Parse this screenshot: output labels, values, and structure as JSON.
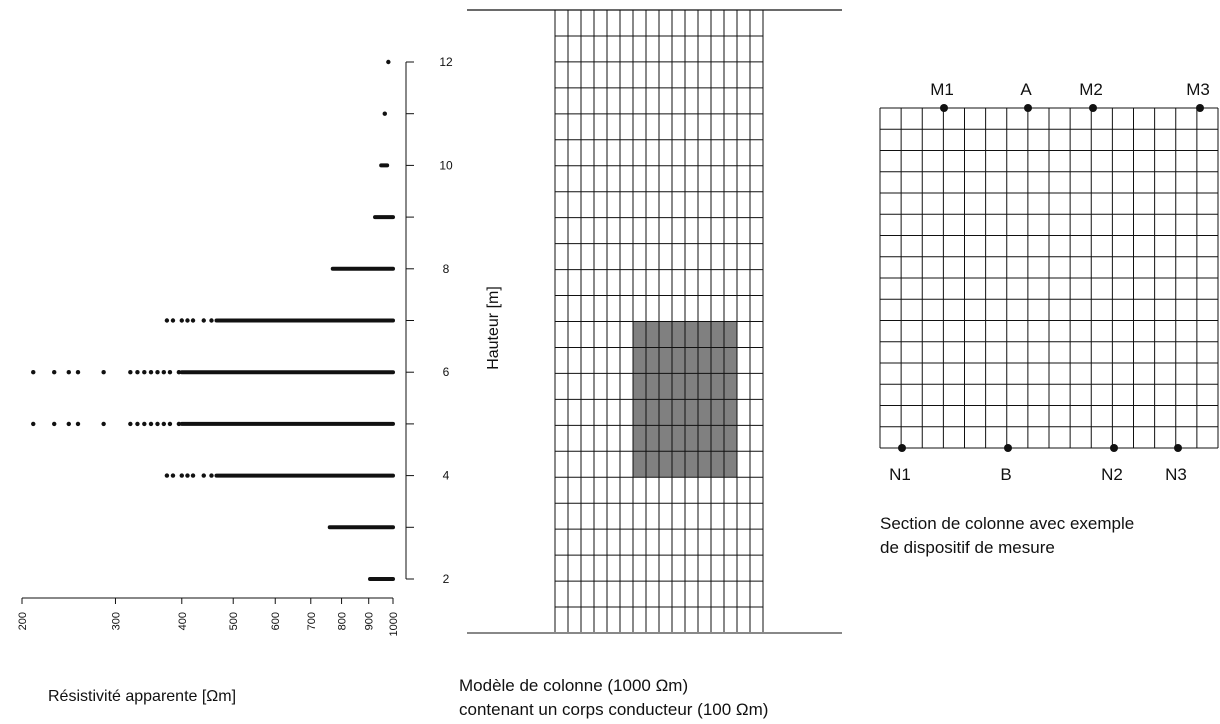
{
  "chart_data": {
    "type": "scatter",
    "xlabel": "Résistivité apparente [Ωm]",
    "ylabel": "Hauteur [m]",
    "x_scale": "log",
    "xlim": [
      200,
      1000
    ],
    "ylim": [
      2,
      12
    ],
    "x_ticks": [
      "200",
      "300",
      "400",
      "500",
      "600",
      "700",
      "800",
      "900",
      "1000"
    ],
    "y_ticks": [
      "2",
      "4",
      "6",
      "8",
      "10",
      "12"
    ],
    "rows": [
      {
        "height": 2,
        "min": 905,
        "max": 1000,
        "points": []
      },
      {
        "height": 3,
        "min": 760,
        "max": 1000,
        "points": []
      },
      {
        "height": 4,
        "min": 465,
        "max": 1000,
        "points": [
          375,
          385,
          400,
          410,
          420,
          440,
          455
        ]
      },
      {
        "height": 5,
        "min": 400,
        "max": 1000,
        "points": [
          210,
          230,
          245,
          255,
          285,
          320,
          330,
          340,
          350,
          360,
          370,
          380,
          395
        ]
      },
      {
        "height": 6,
        "min": 400,
        "max": 1000,
        "points": [
          210,
          230,
          245,
          255,
          285,
          320,
          330,
          340,
          350,
          360,
          370,
          380,
          395
        ]
      },
      {
        "height": 7,
        "min": 465,
        "max": 1000,
        "points": [
          375,
          385,
          400,
          410,
          420,
          440,
          455
        ]
      },
      {
        "height": 8,
        "min": 770,
        "max": 1000,
        "points": []
      },
      {
        "height": 9,
        "min": 925,
        "max": 1000,
        "points": []
      },
      {
        "height": 10,
        "min": 950,
        "max": 975,
        "points": []
      },
      {
        "height": 11,
        "min": 965,
        "max": 965,
        "points": []
      },
      {
        "height": 12,
        "min": 980,
        "max": 980,
        "points": []
      }
    ]
  },
  "model": {
    "caption_line1": "Modèle de colonne (1000 Ωm)",
    "caption_line2": "contenant un corps conducteur (100 Ωm)"
  },
  "section": {
    "electrodes_top": [
      "M1",
      "A",
      "M2",
      "M3"
    ],
    "electrodes_bottom": [
      "N1",
      "B",
      "N2",
      "N3"
    ],
    "caption_line1": "Section de colonne avec exemple",
    "caption_line2": "de dispositif de mesure"
  },
  "colors": {
    "ink": "#111111",
    "body_fill": "#808080",
    "baseline": "#888888"
  }
}
